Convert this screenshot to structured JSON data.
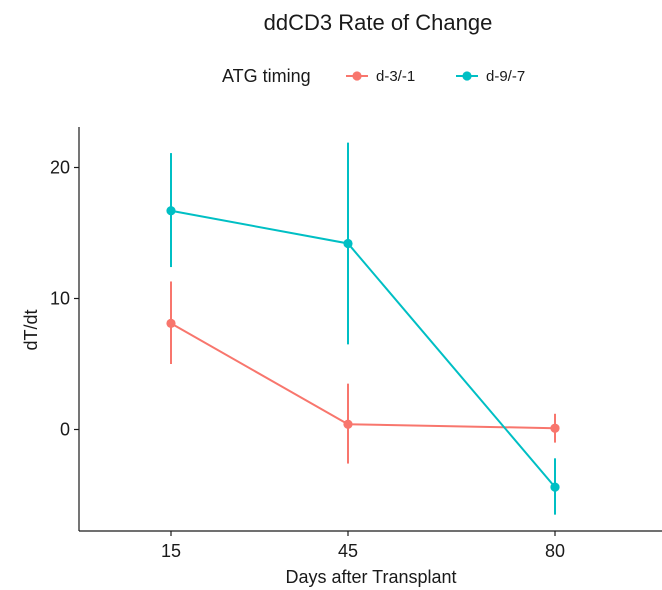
{
  "chart_data": {
    "type": "line",
    "title": "ddCD3 Rate of Change",
    "xlabel": "Days after Transplant",
    "ylabel": "dT/dt",
    "categories": [
      "15",
      "45",
      "80"
    ],
    "yticks": [
      0,
      10,
      20
    ],
    "ylim": [
      -8.2,
      23.1
    ],
    "grid": false,
    "legend": {
      "title": "ATG timing",
      "position": "top"
    },
    "series": [
      {
        "name": "d-3/-1",
        "color": "#F8766D",
        "values": [
          8.1,
          0.4,
          0.1
        ],
        "lower": [
          5.0,
          -2.6,
          -1.0
        ],
        "upper": [
          11.3,
          3.5,
          1.2
        ]
      },
      {
        "name": "d-9/-7",
        "color": "#00BFC4",
        "values": [
          16.7,
          14.2,
          -4.4
        ],
        "lower": [
          12.4,
          6.5,
          -6.5
        ],
        "upper": [
          21.1,
          21.9,
          -2.2
        ]
      }
    ]
  }
}
